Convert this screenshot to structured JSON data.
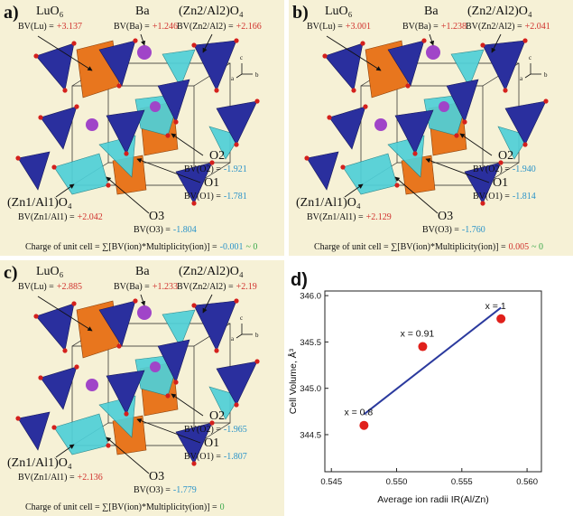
{
  "colors": {
    "cation": "#d0312d",
    "anion": "#2a93c9",
    "zero": "#3aa84a"
  },
  "panels": [
    {
      "label": "a)",
      "luo": "LuO₆",
      "lu_bv": "BV(Lu) =",
      "lu_val": "+3.137",
      "ba": "Ba",
      "ba_bv": "BV(Ba) =",
      "ba_val": "+1.246",
      "zn2": "(Zn2/Al2)O₄",
      "zn2_bv": "BV(Zn2/Al2) =",
      "zn2_val": "+2.166",
      "o2": "O2",
      "o2_bv": "BV(O2) =",
      "o2_val": "-1.921",
      "o1": "O1",
      "o1_bv": "BV(O1) =",
      "o1_val": "-1.781",
      "zn1": "(Zn1/Al1)O₄",
      "zn1_bv": "BV(Zn1/Al1) =",
      "zn1_val": "+2.042",
      "o3": "O3",
      "o3_bv": "BV(O3) =",
      "o3_val": "-1.804",
      "axis_c": "c",
      "axis_a": "a",
      "axis_b": "b",
      "charge": "Charge of unit cell = ∑[BV(ion)*Multiplicity(ion)] =",
      "charge_val": "-0.001",
      "charge_color": "anion",
      "charge_approx": "~ 0"
    },
    {
      "label": "b)",
      "luo": "LuO₆",
      "lu_bv": "BV(Lu) =",
      "lu_val": "+3.001",
      "ba": "Ba",
      "ba_bv": "BV(Ba) =",
      "ba_val": "+1.238",
      "zn2": "(Zn2/Al2)O₄",
      "zn2_bv": "BV(Zn2/Al2) =",
      "zn2_val": "+2.041",
      "o2": "O2",
      "o2_bv": "BV(O2) =",
      "o2_val": "-1.940",
      "o1": "O1",
      "o1_bv": "BV(O1) =",
      "o1_val": "-1.814",
      "zn1": "(Zn1/Al1)O₄",
      "zn1_bv": "BV(Zn1/Al1) =",
      "zn1_val": "+2.129",
      "o3": "O3",
      "o3_bv": "BV(O3) =",
      "o3_val": "-1.760",
      "axis_c": "c",
      "axis_a": "a",
      "axis_b": "b",
      "charge": "Charge of unit cell = ∑[BV(ion)*Multiplicity(ion)] =",
      "charge_val": "0.005",
      "charge_color": "cation",
      "charge_approx": "~ 0"
    },
    {
      "label": "c)",
      "luo": "LuO₆",
      "lu_bv": "BV(Lu) =",
      "lu_val": "+2.885",
      "ba": "Ba",
      "ba_bv": "BV(Ba) =",
      "ba_val": "+1.233",
      "zn2": "(Zn2/Al2)O₄",
      "zn2_bv": "BV(Zn2/Al2) =",
      "zn2_val": "+2.19",
      "o2": "O2",
      "o2_bv": "BV(O2) =",
      "o2_val": "-1.965",
      "o1": "O1",
      "o1_bv": "BV(O1) =",
      "o1_val": "-1.807",
      "zn1": "(Zn1/Al1)O₄",
      "zn1_bv": "BV(Zn1/Al1) =",
      "zn1_val": "+2.136",
      "o3": "O3",
      "o3_bv": "BV(O3) =",
      "o3_val": "-1.779",
      "axis_c": "c",
      "axis_a": "a",
      "axis_b": "b",
      "charge": "Charge of unit cell = ∑[BV(ion)*Multiplicity(ion)] =",
      "charge_val": "0",
      "charge_color": "zero"
    }
  ],
  "chart_data": {
    "type": "scatter",
    "label": "d)",
    "xlabel": "Average ion radii IR(Al/Zn)",
    "ylabel": "Cell Volume, Å³",
    "x": [
      0.5475,
      0.552,
      0.558
    ],
    "values": [
      344.6,
      345.45,
      345.75
    ],
    "point_labels": [
      "x = 0.8",
      "x = 0.91",
      "x = 1"
    ],
    "color": "#e0201b",
    "fit": {
      "x": [
        0.5475,
        0.558
      ],
      "y": [
        344.72,
        345.87
      ],
      "color": "#2b3a9e"
    },
    "xlim": [
      0.5445,
      0.5611
    ],
    "xticks": [
      0.545,
      {
        "value": 0.55,
        "label": "0.550"
      },
      0.555,
      {
        "value": 0.56,
        "label": "0.560"
      }
    ],
    "ylim": [
      344.1,
      346.05
    ],
    "yticks": [
      344.5,
      {
        "value": 345,
        "label": "345.0"
      },
      345.5,
      {
        "value": 346,
        "label": "346.0"
      }
    ]
  }
}
